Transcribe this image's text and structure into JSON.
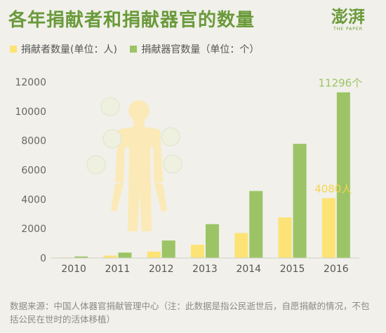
{
  "header": {
    "title": "各年捐献者和捐献器官的数量",
    "logo_text": "澎湃",
    "logo_sub": "THE PAPER"
  },
  "footer": {
    "source": "数据来源：中国人体器官捐献管理中心（注：此数据是指公民逝世后，自愿捐献的情况，不包括公民在世时的活体移植）"
  },
  "colors": {
    "donors": "#fde375",
    "organs": "#9cc466",
    "title": "#6a9a3a",
    "figure": "#fbeab7"
  },
  "chart_data": {
    "type": "bar",
    "categories": [
      "2010",
      "2011",
      "2012",
      "2013",
      "2014",
      "2015",
      "2016"
    ],
    "series": [
      {
        "name": "捐献者数量(单位：人)",
        "values": [
          34,
          163,
          433,
          903,
          1700,
          2766,
          4080
        ]
      },
      {
        "name": "捐献器官数量（单位：个）",
        "values": [
          103,
          369,
          1193,
          2308,
          4566,
          7785,
          11296
        ]
      }
    ],
    "yticks": [
      "0",
      "2000",
      "4000",
      "6000",
      "8000",
      "10000",
      "12000"
    ],
    "ylim": [
      0,
      12000
    ],
    "annotations": [
      {
        "series": 1,
        "index": 6,
        "text": "11296个"
      },
      {
        "series": 0,
        "index": 6,
        "text": "4080人"
      }
    ],
    "legend_position": "top-left",
    "grid": false
  }
}
